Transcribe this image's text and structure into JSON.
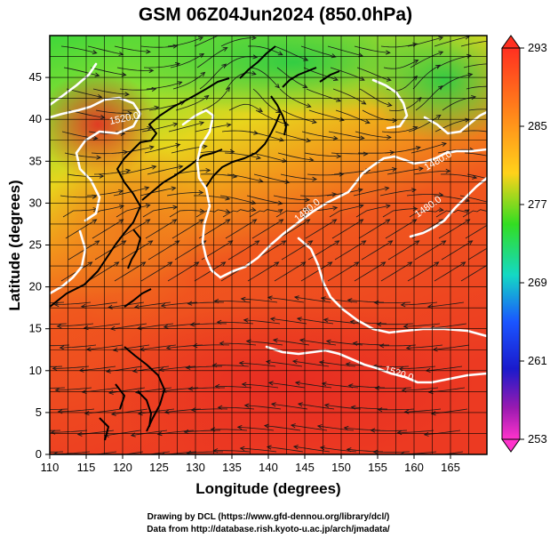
{
  "title": "GSM 06Z04Jun2024 (850.0hPa)",
  "x_axis": {
    "label": "Longitude (degrees)",
    "range": [
      110,
      170
    ],
    "ticks": [
      "110",
      "115",
      "120",
      "125",
      "130",
      "135",
      "140",
      "145",
      "150",
      "155",
      "160",
      "165"
    ]
  },
  "y_axis": {
    "label": "Latitude  (degrees)",
    "range": [
      0,
      50
    ],
    "ticks": [
      "0",
      "5",
      "10",
      "15",
      "20",
      "25",
      "30",
      "35",
      "40",
      "45"
    ]
  },
  "colorbar": {
    "range": [
      253,
      293
    ],
    "ticks": [
      "293",
      "285",
      "277",
      "269",
      "261",
      "253"
    ],
    "colors": [
      "#ff2a2a",
      "#ff8c1a",
      "#ffd21a",
      "#33dd22",
      "#14d9c4",
      "#1a55ff",
      "#1a1acc",
      "#9a1ab0",
      "#ff33cc"
    ]
  },
  "contours": {
    "labels": [
      "1520.0",
      "1520.0",
      "1480.0",
      "1480.0",
      "1480.0"
    ]
  },
  "credits": {
    "line1": "Drawing by DCL (https://www.gfd-dennou.org/library/dcl/)",
    "line2": "Data from http://database.rish.kyoto-u.ac.jp/arch/jmadata/"
  }
}
